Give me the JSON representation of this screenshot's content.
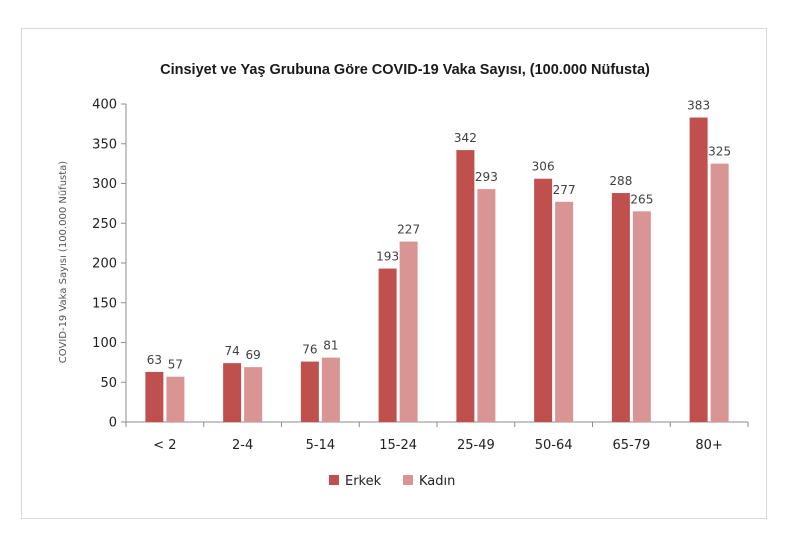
{
  "chart_data": {
    "type": "bar",
    "title": "Cinsiyet ve Yaş Grubuna Göre COVID-19 Vaka Sayısı, (100.000 Nüfusta)",
    "ylabel": "COVID-19 Vaka Sayısı (100.000 Nüfusta)",
    "xlabel": "",
    "ylim": [
      0,
      400
    ],
    "yticks": [
      0,
      50,
      100,
      150,
      200,
      250,
      300,
      350,
      400
    ],
    "categories": [
      "< 2",
      "2-4",
      "5-14",
      "15-24",
      "25-49",
      "50-64",
      "65-79",
      "80+"
    ],
    "series": [
      {
        "name": "Erkek",
        "color": "#c0504d",
        "values": [
          63,
          74,
          76,
          193,
          342,
          306,
          288,
          383
        ]
      },
      {
        "name": "Kadın",
        "color": "#d99594",
        "values": [
          57,
          69,
          81,
          227,
          293,
          277,
          265,
          325
        ]
      }
    ],
    "legend_position": "bottom",
    "grid": false,
    "data_labels": true
  }
}
